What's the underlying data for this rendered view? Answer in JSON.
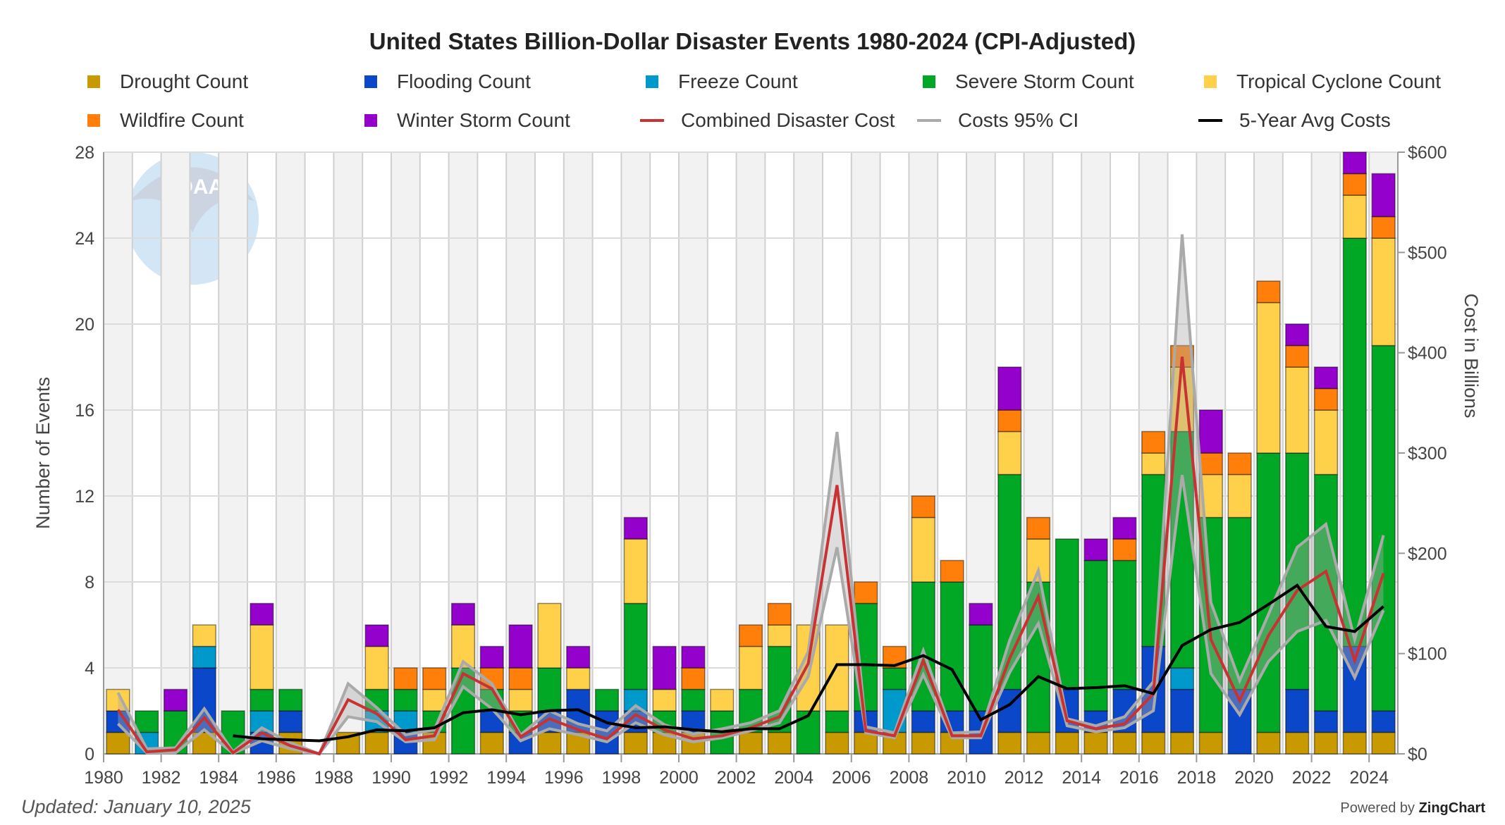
{
  "chart_data": {
    "type": "bar",
    "stacked": true,
    "title": "United States Billion-Dollar Disaster Events 1980-2024 (CPI-Adjusted)",
    "ylabel": "Number of Events",
    "y2label": "Cost in Billions",
    "ylim": [
      0,
      28
    ],
    "y2lim": [
      0,
      600
    ],
    "yticks": [
      "0",
      "4",
      "8",
      "12",
      "16",
      "20",
      "24",
      "28"
    ],
    "y2ticks": [
      "$0",
      "$100",
      "$200",
      "$300",
      "$400",
      "$500",
      "$600"
    ],
    "grid": true,
    "legend_position": "top",
    "categories": [
      1980,
      1981,
      1982,
      1983,
      1984,
      1985,
      1986,
      1987,
      1988,
      1989,
      1990,
      1991,
      1992,
      1993,
      1994,
      1995,
      1996,
      1997,
      1998,
      1999,
      2000,
      2001,
      2002,
      2003,
      2004,
      2005,
      2006,
      2007,
      2008,
      2009,
      2010,
      2011,
      2012,
      2013,
      2014,
      2015,
      2016,
      2017,
      2018,
      2019,
      2020,
      2021,
      2022,
      2023,
      2024
    ],
    "xticks": [
      "1980",
      "1982",
      "1984",
      "1986",
      "1988",
      "1990",
      "1992",
      "1994",
      "1996",
      "1998",
      "2000",
      "2002",
      "2004",
      "2006",
      "2008",
      "2010",
      "2012",
      "2014",
      "2016",
      "2018",
      "2020",
      "2022",
      "2024"
    ],
    "series": [
      {
        "name": "Drought Count",
        "color": "#C99A00",
        "values": [
          1,
          0,
          0,
          1,
          0,
          0,
          1,
          0,
          1,
          1,
          0,
          1,
          0,
          1,
          0,
          1,
          1,
          0,
          1,
          1,
          1,
          0,
          1,
          1,
          0,
          1,
          1,
          1,
          1,
          1,
          0,
          1,
          1,
          1,
          1,
          1,
          1,
          1,
          1,
          0,
          1,
          1,
          1,
          1,
          1
        ]
      },
      {
        "name": "Flooding Count",
        "color": "#0B47C9",
        "values": [
          1,
          0,
          0,
          3,
          0,
          1,
          1,
          0,
          0,
          0,
          1,
          0,
          0,
          1,
          1,
          1,
          2,
          2,
          1,
          0,
          1,
          0,
          0,
          0,
          0,
          0,
          1,
          0,
          1,
          1,
          2,
          2,
          0,
          2,
          1,
          2,
          4,
          2,
          0,
          3,
          0,
          2,
          1,
          4,
          1
        ]
      },
      {
        "name": "Freeze Count",
        "color": "#0099CC",
        "values": [
          0,
          1,
          0,
          1,
          0,
          1,
          0,
          0,
          0,
          1,
          1,
          0,
          0,
          0,
          0,
          0,
          0,
          0,
          1,
          0,
          0,
          0,
          0,
          0,
          0,
          0,
          0,
          2,
          0,
          0,
          0,
          0,
          0,
          0,
          0,
          0,
          0,
          1,
          0,
          0,
          0,
          0,
          0,
          0,
          0
        ]
      },
      {
        "name": "Severe Storm Count",
        "color": "#00A825",
        "values": [
          0,
          1,
          2,
          0,
          2,
          1,
          1,
          0,
          0,
          1,
          1,
          1,
          4,
          1,
          1,
          2,
          0,
          1,
          4,
          1,
          1,
          2,
          2,
          4,
          2,
          1,
          5,
          1,
          6,
          6,
          4,
          10,
          7,
          7,
          7,
          6,
          8,
          11,
          10,
          8,
          13,
          11,
          11,
          19,
          17
        ]
      },
      {
        "name": "Tropical Cyclone Count",
        "color": "#FFD04A",
        "values": [
          1,
          0,
          0,
          1,
          0,
          3,
          0,
          0,
          0,
          2,
          0,
          1,
          2,
          0,
          1,
          3,
          1,
          0,
          3,
          1,
          0,
          1,
          2,
          1,
          4,
          4,
          0,
          0,
          3,
          0,
          0,
          2,
          2,
          0,
          0,
          0,
          1,
          3,
          2,
          2,
          7,
          4,
          3,
          2,
          5
        ]
      },
      {
        "name": "Wildfire Count",
        "color": "#FF7F0A",
        "values": [
          0,
          0,
          0,
          0,
          0,
          0,
          0,
          0,
          0,
          0,
          1,
          1,
          0,
          1,
          1,
          0,
          0,
          0,
          0,
          0,
          1,
          0,
          1,
          1,
          0,
          0,
          1,
          1,
          1,
          1,
          0,
          1,
          1,
          0,
          0,
          1,
          1,
          1,
          1,
          1,
          1,
          1,
          1,
          1,
          1
        ]
      },
      {
        "name": "Winter Storm Count",
        "color": "#9400CC",
        "values": [
          0,
          0,
          1,
          0,
          0,
          1,
          0,
          0,
          0,
          1,
          0,
          0,
          1,
          1,
          2,
          0,
          1,
          0,
          1,
          2,
          1,
          0,
          0,
          0,
          0,
          0,
          0,
          0,
          0,
          0,
          1,
          2,
          0,
          0,
          1,
          1,
          0,
          0,
          2,
          0,
          0,
          1,
          1,
          1,
          2
        ]
      }
    ],
    "lines": [
      {
        "name": "Combined Disaster Cost",
        "color": "#C83232",
        "axis": "y2",
        "values": [
          44,
          2,
          4,
          36,
          1,
          21,
          8,
          0,
          54,
          40,
          14,
          18,
          80,
          65,
          17,
          35,
          24,
          15,
          39,
          24,
          15,
          18,
          26,
          37,
          90,
          268,
          23,
          18,
          93,
          18,
          18,
          95,
          157,
          33,
          25,
          30,
          60,
          396,
          114,
          53,
          118,
          163,
          182,
          93,
          180
        ]
      },
      {
        "name": "Costs 95% CI",
        "color": "#AAAAAA",
        "axis": "y2",
        "upper": [
          61,
          5,
          6,
          45,
          2,
          26,
          11,
          0,
          70,
          46,
          19,
          24,
          92,
          70,
          19,
          43,
          30,
          23,
          48,
          29,
          20,
          25,
          31,
          43,
          102,
          321,
          27,
          21,
          103,
          21,
          22,
          113,
          183,
          35,
          28,
          37,
          72,
          518,
          151,
          73,
          139,
          206,
          229,
          114,
          218
        ],
        "lower": [
          30,
          1,
          1,
          24,
          0.5,
          13,
          5,
          0,
          37,
          32,
          12,
          14,
          67,
          45,
          13,
          25,
          19,
          12,
          31,
          19,
          12,
          16,
          23,
          31,
          77,
          206,
          21,
          16,
          79,
          16,
          16,
          81,
          130,
          28,
          22,
          26,
          43,
          278,
          80,
          39,
          92,
          122,
          133,
          76,
          143
        ]
      },
      {
        "name": "5-Year Avg Costs",
        "color": "#000000",
        "axis": "y2",
        "values": [
          null,
          null,
          null,
          null,
          18,
          15,
          14,
          13,
          17,
          24,
          23,
          26,
          41,
          44,
          39,
          43,
          44,
          31,
          26,
          27,
          24,
          22,
          25,
          25,
          38,
          89,
          89,
          88,
          98,
          84,
          34,
          49,
          77,
          65,
          66,
          68,
          60,
          108,
          124,
          131,
          149,
          168,
          127,
          122,
          147
        ]
      }
    ]
  },
  "footer": {
    "updated": "Updated: January 10, 2025",
    "powered_prefix": "Powered by ",
    "powered_brand": "ZingChart"
  },
  "logo_text": "NOAA"
}
